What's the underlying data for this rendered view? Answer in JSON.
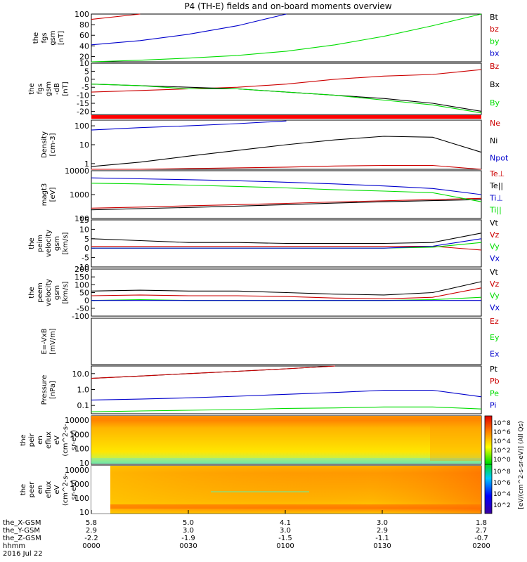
{
  "title": "P4 (TH-E) fields and on-board moments overview",
  "colorbar": {
    "label": "[eV/(cm^2-s-sr-eV)] (All Qs)",
    "ticks_upper": [
      "10^8",
      "10^6",
      "10^4",
      "10^2",
      "10^0"
    ],
    "ticks_lower": [
      "10^8",
      "10^6",
      "10^4",
      "10^2"
    ]
  },
  "xaxis": {
    "tick_times": [
      "0000",
      "0030",
      "0100",
      "0130",
      "0200"
    ],
    "rows": [
      {
        "label": "the_X-GSM",
        "values": [
          "5.8",
          "5.0",
          "4.1",
          "3.0",
          "1.8"
        ]
      },
      {
        "label": "the_Y-GSM",
        "values": [
          "2.9",
          "3.0",
          "3.0",
          "2.9",
          "2.7"
        ]
      },
      {
        "label": "the_Z-GSM",
        "values": [
          "-2.2",
          "-1.9",
          "-1.5",
          "-1.1",
          "-0.7"
        ]
      },
      {
        "label": "hhmm",
        "values": [
          "0000",
          "0030",
          "0100",
          "0130",
          "0200"
        ]
      }
    ],
    "date": "2016 Jul 22"
  },
  "chart_data": [
    {
      "type": "line",
      "ylabel": [
        "the",
        "fgs",
        "gsm",
        "[nT]"
      ],
      "ylim": [
        10,
        100
      ],
      "yticks": [
        "100",
        "80",
        "60",
        "40",
        "20"
      ],
      "x": [
        0,
        15,
        30,
        45,
        60,
        75,
        90,
        105,
        120
      ],
      "series": [
        {
          "name": "Bt",
          "color": "#000000",
          "values": [
            null,
            null,
            null,
            null,
            null,
            null,
            null,
            null,
            null
          ]
        },
        {
          "name": "bz",
          "color": "#cc0000",
          "values": [
            90,
            100,
            null,
            null,
            null,
            null,
            null,
            null,
            null
          ]
        },
        {
          "name": "by",
          "color": "#00dd00",
          "values": [
            10,
            13,
            17,
            22,
            30,
            42,
            58,
            78,
            100
          ]
        },
        {
          "name": "bx",
          "color": "#0000cc",
          "values": [
            42,
            50,
            62,
            78,
            100,
            null,
            null,
            null,
            null
          ]
        }
      ]
    },
    {
      "type": "line",
      "ylabel": [
        "the",
        "fgs",
        "gsm",
        "-dB",
        "[nT]"
      ],
      "ylim": [
        -22,
        10
      ],
      "yticks": [
        "10",
        "5",
        "0",
        "-5",
        "-10",
        "-15",
        "-20"
      ],
      "x": [
        0,
        15,
        30,
        45,
        60,
        75,
        90,
        105,
        120
      ],
      "series": [
        {
          "name": "Bz",
          "color": "#cc0000",
          "values": [
            -8,
            -7,
            -6,
            -5,
            -3,
            0,
            2,
            3,
            6
          ]
        },
        {
          "name": "Bx",
          "color": "#000000",
          "values": [
            -3,
            -4,
            -5,
            -6,
            -8,
            -10,
            -12,
            -15,
            -20
          ]
        },
        {
          "name": "By",
          "color": "#00dd00",
          "values": [
            -3,
            -4,
            -6,
            -6,
            -8,
            -10,
            -13,
            -16,
            -21
          ]
        }
      ]
    },
    {
      "type": "line",
      "ylabel": [
        "Density",
        "[cm-3]"
      ],
      "scale": "log",
      "ylim": [
        0.5,
        200
      ],
      "yticks": [
        "100",
        "10",
        "1"
      ],
      "x": [
        0,
        15,
        30,
        45,
        60,
        75,
        90,
        105,
        120
      ],
      "series": [
        {
          "name": "Ne",
          "color": "#cc0000",
          "values": [
            0.5,
            0.5,
            0.55,
            0.6,
            0.65,
            0.75,
            0.8,
            0.8,
            0.5
          ]
        },
        {
          "name": "Ni",
          "color": "#000000",
          "values": [
            0.7,
            1.2,
            2.5,
            5,
            10,
            18,
            28,
            25,
            4
          ]
        },
        {
          "name": "Npot",
          "color": "#0000cc",
          "values": [
            60,
            80,
            100,
            130,
            180,
            null,
            null,
            null,
            null
          ]
        }
      ]
    },
    {
      "type": "line",
      "ylabel": [
        "magt3",
        "[eV]"
      ],
      "scale": "log",
      "ylim": [
        100,
        10000
      ],
      "yticks": [
        "10000",
        "1000",
        "100"
      ],
      "x": [
        0,
        15,
        30,
        45,
        60,
        75,
        90,
        105,
        120
      ],
      "series": [
        {
          "name": "Te⊥",
          "color": "#cc0000",
          "values": [
            270,
            300,
            340,
            380,
            430,
            490,
            550,
            620,
            700
          ]
        },
        {
          "name": "Te||",
          "color": "#000000",
          "values": [
            230,
            260,
            290,
            330,
            380,
            440,
            500,
            560,
            620
          ]
        },
        {
          "name": "Ti⊥",
          "color": "#0000cc",
          "values": [
            5000,
            4600,
            4200,
            3800,
            3300,
            2800,
            2300,
            1800,
            1000
          ]
        },
        {
          "name": "Ti||",
          "color": "#00dd00",
          "values": [
            3000,
            2800,
            2500,
            2200,
            1900,
            1600,
            1400,
            1200,
            500
          ]
        }
      ]
    },
    {
      "type": "line",
      "ylabel": [
        "the",
        "peim",
        "velocity",
        "gsm",
        "[km/s]"
      ],
      "ylim": [
        -10,
        15
      ],
      "yticks": [
        "15",
        "10",
        "5",
        "0",
        "-5",
        "-10"
      ],
      "x": [
        0,
        15,
        30,
        45,
        60,
        75,
        90,
        105,
        120
      ],
      "series": [
        {
          "name": "Vt",
          "color": "#000000",
          "values": [
            5,
            4,
            3,
            3,
            2.5,
            2.5,
            2.5,
            3,
            8
          ]
        },
        {
          "name": "Vz",
          "color": "#cc0000",
          "values": [
            1,
            1,
            1,
            1,
            1,
            1,
            1,
            1,
            -1
          ]
        },
        {
          "name": "Vy",
          "color": "#00dd00",
          "values": [
            0,
            0,
            0,
            0,
            0,
            0,
            0,
            0.5,
            3
          ]
        },
        {
          "name": "Vx",
          "color": "#0000cc",
          "values": [
            0,
            0,
            0,
            0,
            0,
            0,
            0,
            1,
            5
          ]
        }
      ]
    },
    {
      "type": "line",
      "ylabel": [
        "the",
        "peem",
        "velocity",
        "gsm",
        "[km/s]"
      ],
      "ylim": [
        -100,
        200
      ],
      "yticks": [
        "200",
        "150",
        "100",
        "50",
        "0",
        "-50",
        "-100"
      ],
      "x": [
        0,
        15,
        30,
        45,
        60,
        75,
        90,
        105,
        120
      ],
      "series": [
        {
          "name": "Vt",
          "color": "#000000",
          "values": [
            60,
            65,
            60,
            60,
            50,
            40,
            35,
            50,
            120
          ]
        },
        {
          "name": "Vz",
          "color": "#cc0000",
          "values": [
            30,
            35,
            30,
            30,
            25,
            15,
            10,
            20,
            80
          ]
        },
        {
          "name": "Vy",
          "color": "#00dd00",
          "values": [
            0,
            5,
            0,
            0,
            0,
            0,
            0,
            5,
            20
          ]
        },
        {
          "name": "Vx",
          "color": "#0000cc",
          "values": [
            0,
            0,
            0,
            0,
            0,
            0,
            0,
            0,
            0
          ]
        }
      ]
    },
    {
      "type": "line",
      "ylabel": [
        "E=-VxB",
        "[mV/m]"
      ],
      "ylim": [
        0,
        1
      ],
      "yticks": [],
      "x": [],
      "series": [
        {
          "name": "Ez",
          "color": "#cc0000",
          "values": []
        },
        {
          "name": "Ey",
          "color": "#00dd00",
          "values": []
        },
        {
          "name": "Ex",
          "color": "#0000cc",
          "values": []
        }
      ]
    },
    {
      "type": "line",
      "ylabel": [
        "Pressure",
        "[nPa]"
      ],
      "scale": "log",
      "ylim": [
        0.03,
        30
      ],
      "yticks": [
        "10.0",
        "1.0",
        "0.1"
      ],
      "x": [
        0,
        15,
        30,
        45,
        60,
        75,
        90,
        105,
        120
      ],
      "series": [
        {
          "name": "Pt",
          "color": "#000000",
          "values": [
            5,
            7,
            10,
            14,
            20,
            30,
            null,
            null,
            null
          ]
        },
        {
          "name": "Pb",
          "color": "#cc0000",
          "values": [
            5,
            7,
            10,
            14,
            20,
            30,
            null,
            null,
            null
          ]
        },
        {
          "name": "Pe",
          "color": "#00dd00",
          "values": [
            0.04,
            0.045,
            0.05,
            0.055,
            0.065,
            0.07,
            0.08,
            0.08,
            0.06
          ]
        },
        {
          "name": "Pi",
          "color": "#0000cc",
          "values": [
            0.22,
            0.25,
            0.3,
            0.38,
            0.5,
            0.65,
            0.9,
            0.9,
            0.35
          ]
        }
      ]
    },
    {
      "type": "heatmap",
      "ylabel": [
        "the",
        "peir",
        "en",
        "eflux",
        "eV",
        "(cm^2-s-",
        "sr-eV)"
      ],
      "scale": "log",
      "ylim": [
        8,
        20000
      ],
      "yticks": [
        "10000",
        "1000",
        "100",
        "10"
      ]
    },
    {
      "type": "heatmap",
      "ylabel": [
        "the",
        "peer",
        "en",
        "eflux",
        "eV",
        "(cm^2-s-",
        "sr-eV)"
      ],
      "scale": "log",
      "ylim": [
        8,
        20000
      ],
      "yticks": [
        "10000",
        "1000",
        "100",
        "10"
      ]
    }
  ]
}
